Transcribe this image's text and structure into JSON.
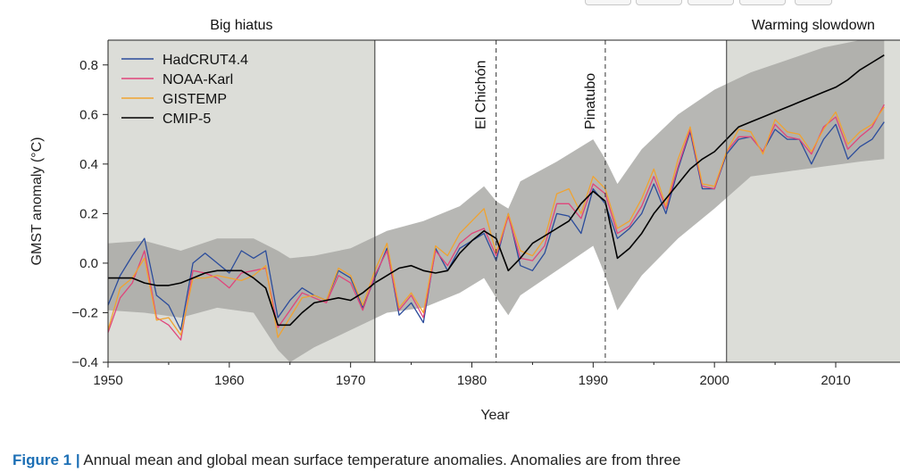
{
  "chart_data": {
    "type": "line",
    "title": "",
    "xlabel": "Year",
    "ylabel": "GMST anomaly (°C)",
    "xlim": [
      1950,
      2014
    ],
    "ylim": [
      -0.4,
      0.9
    ],
    "xticks": [
      1950,
      1960,
      1970,
      1980,
      1990,
      2000,
      2010
    ],
    "yticks": [
      -0.4,
      -0.2,
      0.0,
      0.2,
      0.4,
      0.6,
      0.8
    ],
    "ytick_labels": [
      "−0.4",
      "−0.2",
      "0.0",
      "0.2",
      "0.4",
      "0.6",
      "0.8"
    ],
    "grid": false,
    "legend": "top-left",
    "shaded_periods": [
      {
        "label": "Big hiatus",
        "start": 1950,
        "end": 1972
      },
      {
        "label": "Warming slowdown",
        "start": 2001,
        "end": 2014
      }
    ],
    "volcanic_events": [
      {
        "label": "El Chichón",
        "year": 1982
      },
      {
        "label": "Pinatubo",
        "year": 1991
      }
    ],
    "cmip5_envelope": {
      "x": [
        1950,
        1953,
        1956,
        1959,
        1962,
        1964,
        1965,
        1967,
        1970,
        1973,
        1976,
        1979,
        1981,
        1982,
        1983,
        1984,
        1987,
        1990,
        1991,
        1992,
        1994,
        1997,
        2000,
        2003,
        2006,
        2009,
        2012,
        2014
      ],
      "upper": [
        0.08,
        0.09,
        0.05,
        0.1,
        0.1,
        0.05,
        0.02,
        0.03,
        0.06,
        0.13,
        0.17,
        0.23,
        0.31,
        0.25,
        0.22,
        0.33,
        0.41,
        0.5,
        0.42,
        0.32,
        0.46,
        0.6,
        0.7,
        0.77,
        0.82,
        0.87,
        0.9,
        0.9
      ],
      "lower": [
        -0.19,
        -0.2,
        -0.22,
        -0.18,
        -0.2,
        -0.35,
        -0.4,
        -0.34,
        -0.27,
        -0.2,
        -0.18,
        -0.12,
        -0.06,
        -0.14,
        -0.21,
        -0.13,
        -0.03,
        0.07,
        -0.05,
        -0.19,
        -0.05,
        0.1,
        0.22,
        0.35,
        0.37,
        0.39,
        0.41,
        0.42
      ]
    },
    "x": [
      1950,
      1951,
      1952,
      1953,
      1954,
      1955,
      1956,
      1957,
      1958,
      1959,
      1960,
      1961,
      1962,
      1963,
      1964,
      1965,
      1966,
      1967,
      1968,
      1969,
      1970,
      1971,
      1972,
      1973,
      1974,
      1975,
      1976,
      1977,
      1978,
      1979,
      1980,
      1981,
      1982,
      1983,
      1984,
      1985,
      1986,
      1987,
      1988,
      1989,
      1990,
      1991,
      1992,
      1993,
      1994,
      1995,
      1996,
      1997,
      1998,
      1999,
      2000,
      2001,
      2002,
      2003,
      2004,
      2005,
      2006,
      2007,
      2008,
      2009,
      2010,
      2011,
      2012,
      2013,
      2014
    ],
    "series": [
      {
        "name": "HadCRUT4.4",
        "color": "#2b4c9b",
        "values": [
          -0.17,
          -0.05,
          0.03,
          0.1,
          -0.13,
          -0.17,
          -0.27,
          0.0,
          0.04,
          0.0,
          -0.04,
          0.05,
          0.02,
          0.05,
          -0.22,
          -0.15,
          -0.1,
          -0.13,
          -0.15,
          -0.03,
          -0.06,
          -0.18,
          -0.06,
          0.06,
          -0.21,
          -0.16,
          -0.24,
          0.06,
          -0.03,
          0.06,
          0.09,
          0.12,
          0.01,
          0.2,
          -0.01,
          -0.03,
          0.04,
          0.2,
          0.19,
          0.12,
          0.3,
          0.24,
          0.1,
          0.14,
          0.2,
          0.32,
          0.2,
          0.38,
          0.53,
          0.3,
          0.3,
          0.44,
          0.5,
          0.51,
          0.45,
          0.54,
          0.5,
          0.5,
          0.4,
          0.5,
          0.56,
          0.42,
          0.47,
          0.5,
          0.57
        ]
      },
      {
        "name": "NOAA-Karl",
        "color": "#e0457b",
        "values": [
          -0.28,
          -0.14,
          -0.08,
          0.05,
          -0.22,
          -0.25,
          -0.31,
          -0.03,
          -0.04,
          -0.06,
          -0.1,
          -0.04,
          -0.03,
          -0.02,
          -0.26,
          -0.19,
          -0.12,
          -0.14,
          -0.16,
          -0.05,
          -0.08,
          -0.19,
          -0.05,
          0.05,
          -0.19,
          -0.13,
          -0.22,
          0.05,
          -0.01,
          0.08,
          0.12,
          0.14,
          0.03,
          0.19,
          0.02,
          0.01,
          0.07,
          0.24,
          0.24,
          0.18,
          0.32,
          0.28,
          0.12,
          0.15,
          0.23,
          0.35,
          0.22,
          0.39,
          0.54,
          0.31,
          0.3,
          0.45,
          0.51,
          0.51,
          0.45,
          0.56,
          0.51,
          0.5,
          0.44,
          0.55,
          0.59,
          0.46,
          0.51,
          0.55,
          0.64
        ]
      },
      {
        "name": "GISTEMP",
        "color": "#f0a330",
        "values": [
          -0.27,
          -0.1,
          -0.06,
          0.02,
          -0.23,
          -0.22,
          -0.29,
          -0.06,
          -0.06,
          -0.05,
          -0.06,
          -0.07,
          -0.05,
          -0.01,
          -0.3,
          -0.22,
          -0.14,
          -0.13,
          -0.15,
          -0.02,
          -0.05,
          -0.17,
          -0.03,
          0.08,
          -0.18,
          -0.12,
          -0.2,
          0.07,
          0.03,
          0.12,
          0.17,
          0.22,
          0.04,
          0.2,
          0.05,
          0.03,
          0.1,
          0.28,
          0.3,
          0.2,
          0.35,
          0.3,
          0.14,
          0.17,
          0.26,
          0.38,
          0.23,
          0.42,
          0.55,
          0.32,
          0.31,
          0.45,
          0.54,
          0.53,
          0.44,
          0.58,
          0.53,
          0.52,
          0.45,
          0.54,
          0.61,
          0.48,
          0.53,
          0.56,
          0.63
        ]
      },
      {
        "name": "CMIP-5",
        "color": "#000000",
        "values": [
          -0.06,
          -0.06,
          -0.06,
          -0.08,
          -0.09,
          -0.09,
          -0.08,
          -0.06,
          -0.04,
          -0.03,
          -0.03,
          -0.03,
          -0.06,
          -0.1,
          -0.25,
          -0.25,
          -0.2,
          -0.16,
          -0.15,
          -0.14,
          -0.15,
          -0.12,
          -0.08,
          -0.05,
          -0.02,
          -0.01,
          -0.03,
          -0.04,
          -0.03,
          0.04,
          0.09,
          0.13,
          0.1,
          -0.03,
          0.02,
          0.08,
          0.11,
          0.14,
          0.17,
          0.24,
          0.29,
          0.25,
          0.02,
          0.06,
          0.12,
          0.2,
          0.26,
          0.32,
          0.38,
          0.42,
          0.45,
          0.5,
          0.55,
          0.57,
          0.59,
          0.61,
          0.63,
          0.65,
          0.67,
          0.69,
          0.71,
          0.74,
          0.78,
          0.81,
          0.84
        ]
      }
    ]
  },
  "caption": {
    "figure_label": "Figure 1 |",
    "text": " Annual mean and global mean surface temperature anomalies. Anomalies are from three"
  }
}
